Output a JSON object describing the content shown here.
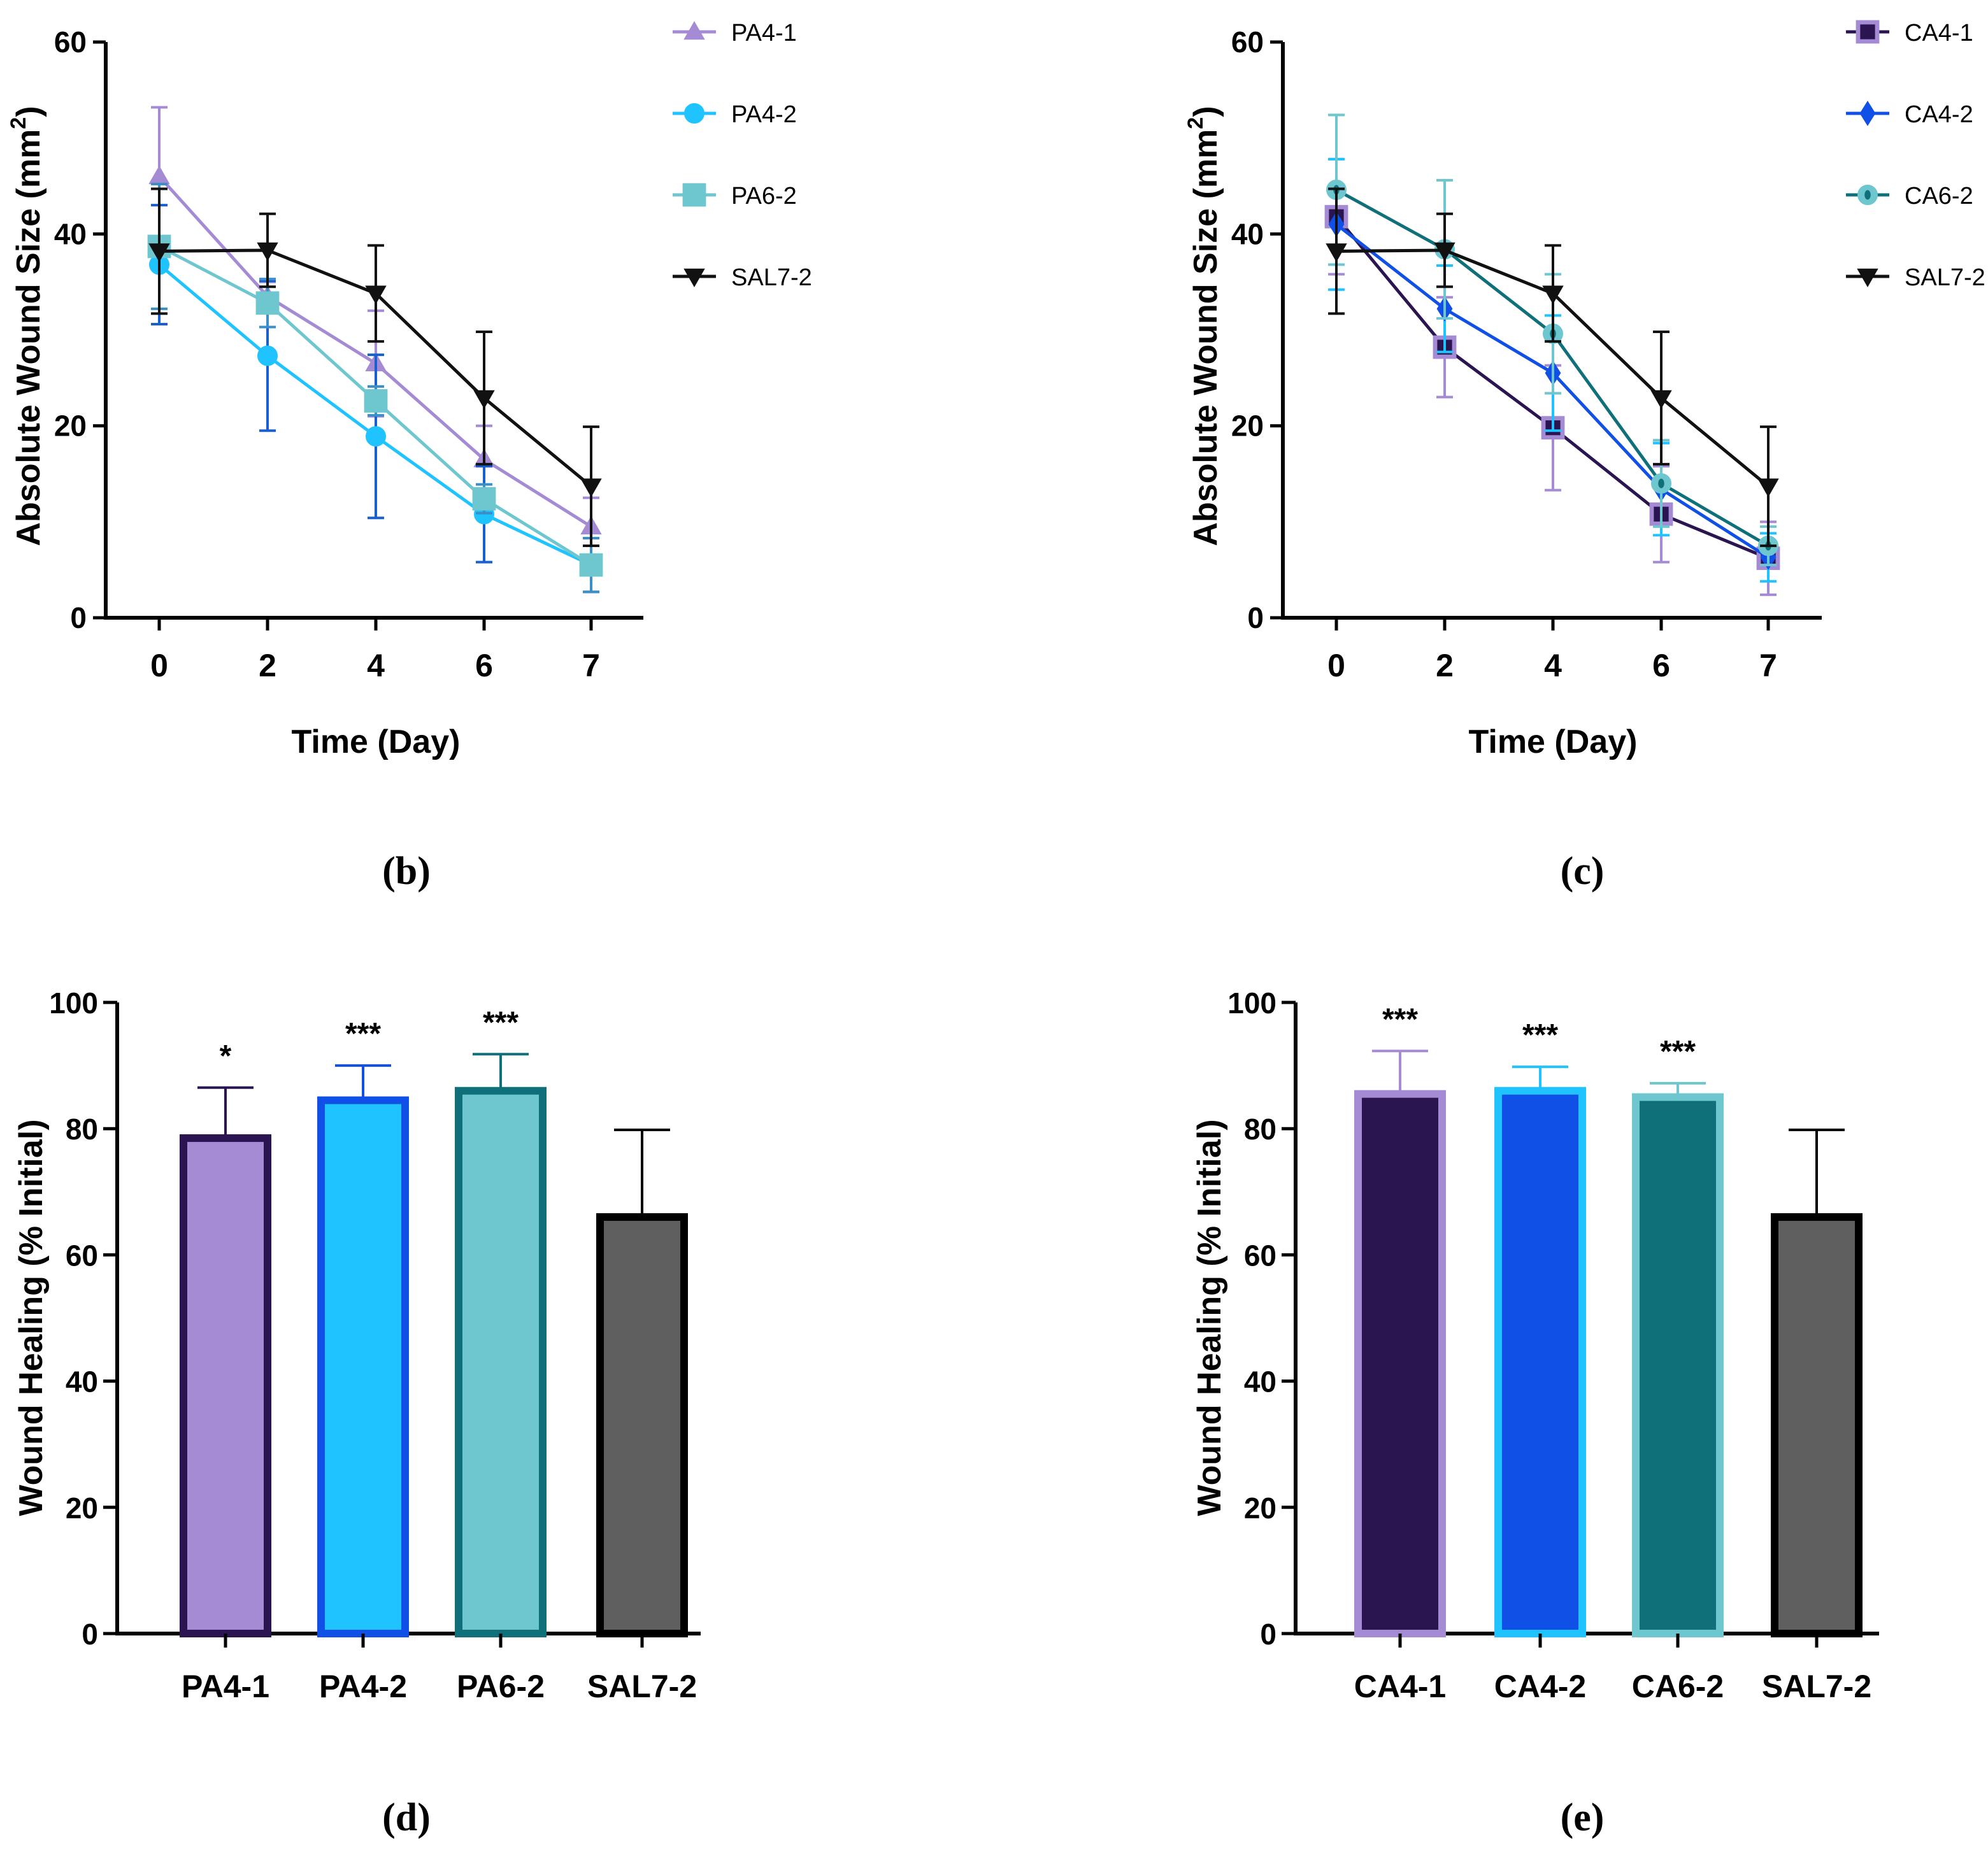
{
  "panel_labels": [
    "(b)",
    "(c)",
    "(d)",
    "(e)"
  ],
  "colors": {
    "lavender": "#a48bd4",
    "sky": "#1ec3ff",
    "aqua": "#6ec6ce",
    "black": "#111111",
    "darkpurple": "#2b1550",
    "blue": "#1050e6",
    "teal": "#10707a",
    "gray": "#5f5f5f"
  },
  "chart_data": [
    {
      "id": "b",
      "type": "line",
      "title": "",
      "xlabel": "Time (Day)",
      "ylabel": "Absolute Wound Size (mm²)",
      "ylabel_main": "Absolute Wound Size (mm",
      "ylabel_sup": "2",
      "ylabel_close": ")",
      "categories": [
        "0",
        "2",
        "4",
        "6",
        "7"
      ],
      "ylim": [
        0,
        60
      ],
      "yticks": [
        "0",
        "20",
        "40",
        "60"
      ],
      "legend_position": "top-right",
      "series": [
        {
          "name": "PA4-1",
          "marker": "triangle-up",
          "color": "#a48bd4",
          "errcolor": "#a48bd4",
          "values": [
            46,
            33.5,
            26.5,
            16.5,
            9.5
          ],
          "errors": [
            7.2,
            1.5,
            5.5,
            3.5,
            3.0
          ]
        },
        {
          "name": "PA4-2",
          "marker": "circle",
          "color": "#1ec3ff",
          "errcolor": "#1a5fd0",
          "values": [
            36.8,
            27.3,
            18.9,
            10.8,
            5.5
          ],
          "errors": [
            6.2,
            7.8,
            8.5,
            5.0,
            2.8
          ]
        },
        {
          "name": "PA6-2",
          "marker": "square",
          "color": "#6ec6ce",
          "errcolor": "#3a8fc8",
          "values": [
            38.7,
            32.8,
            22.6,
            12.4,
            5.5
          ],
          "errors": [
            6.5,
            2.5,
            1.5,
            1.5,
            2.8
          ]
        },
        {
          "name": "SAL7-2",
          "marker": "triangle-down",
          "color": "#111111",
          "errcolor": "#111111",
          "values": [
            38.2,
            38.3,
            33.8,
            22.9,
            13.7
          ],
          "errors": [
            6.5,
            3.8,
            5.0,
            6.9,
            6.2
          ]
        }
      ]
    },
    {
      "id": "c",
      "type": "line",
      "title": "",
      "xlabel": "Time (Day)",
      "ylabel": "Absolute Wound Size (mm²)",
      "ylabel_main": "Absolute Wound Size (mm",
      "ylabel_sup": "2",
      "ylabel_close": ")",
      "categories": [
        "0",
        "2",
        "4",
        "6",
        "7"
      ],
      "ylim": [
        0,
        60
      ],
      "yticks": [
        "0",
        "20",
        "40",
        "60"
      ],
      "legend_position": "top-right",
      "series": [
        {
          "name": "CA4-1",
          "marker": "square",
          "color": "#2b1550",
          "markerfill": "#2b1550",
          "markerstroke": "#a48bd4",
          "errcolor": "#a48bd4",
          "values": [
            41.8,
            28.2,
            19.8,
            10.8,
            6.2
          ],
          "errors": [
            6.0,
            5.2,
            6.5,
            5.0,
            3.8
          ]
        },
        {
          "name": "CA4-2",
          "marker": "diamond",
          "color": "#1050e6",
          "markerfill": "#1050e6",
          "markerstroke": "#1050e6",
          "errcolor": "#1ec3ff",
          "values": [
            41.0,
            32.2,
            25.5,
            13.4,
            6.3
          ],
          "errors": [
            6.8,
            4.5,
            6.0,
            4.8,
            2.5
          ]
        },
        {
          "name": "CA6-2",
          "marker": "circle",
          "color": "#10707a",
          "markerfill": "#6ec6ce",
          "markerstroke": "#6ec6ce",
          "markercore": "#10707a",
          "errcolor": "#6ec6ce",
          "values": [
            44.6,
            38.4,
            29.6,
            14.0,
            7.5
          ],
          "errors": [
            7.8,
            7.2,
            6.2,
            4.5,
            2.0
          ]
        },
        {
          "name": "SAL7-2",
          "marker": "triangle-down",
          "color": "#111111",
          "markerfill": "#111111",
          "markerstroke": "#111111",
          "errcolor": "#111111",
          "values": [
            38.2,
            38.3,
            33.8,
            22.9,
            13.7
          ],
          "errors": [
            6.5,
            3.8,
            5.0,
            6.9,
            6.2
          ]
        }
      ]
    },
    {
      "id": "d",
      "type": "bar",
      "title": "",
      "xlabel": "",
      "ylabel": "Wound Healing (% Initial)",
      "categories": [
        "PA4-1",
        "PA4-2",
        "PA6-2",
        "SAL7-2"
      ],
      "values": [
        78.5,
        84.5,
        86.0,
        66.0
      ],
      "errors": [
        8.0,
        5.5,
        5.8,
        13.8
      ],
      "significance": [
        "*",
        "***",
        "***",
        ""
      ],
      "fills": [
        "#a48bd4",
        "#1ec3ff",
        "#6ec6ce",
        "#5f5f5f"
      ],
      "borders": [
        "#2b1550",
        "#1050e6",
        "#10707a",
        "#000000"
      ],
      "ylim": [
        0,
        100
      ],
      "yticks": [
        "0",
        "20",
        "40",
        "60",
        "80",
        "100"
      ]
    },
    {
      "id": "e",
      "type": "bar",
      "title": "",
      "xlabel": "",
      "ylabel": "Wound Healing (% Initial)",
      "categories": [
        "CA4-1",
        "CA4-2",
        "CA6-2",
        "SAL7-2"
      ],
      "values": [
        85.5,
        86.0,
        85.0,
        66.0
      ],
      "errors": [
        6.8,
        3.8,
        2.2,
        13.8
      ],
      "significance": [
        "***",
        "***",
        "***",
        ""
      ],
      "fills": [
        "#2b1550",
        "#1050e6",
        "#10707a",
        "#5f5f5f"
      ],
      "borders": [
        "#a48bd4",
        "#1ec3ff",
        "#6ec6ce",
        "#000000"
      ],
      "ylim": [
        0,
        100
      ],
      "yticks": [
        "0",
        "20",
        "40",
        "60",
        "80",
        "100"
      ]
    }
  ]
}
